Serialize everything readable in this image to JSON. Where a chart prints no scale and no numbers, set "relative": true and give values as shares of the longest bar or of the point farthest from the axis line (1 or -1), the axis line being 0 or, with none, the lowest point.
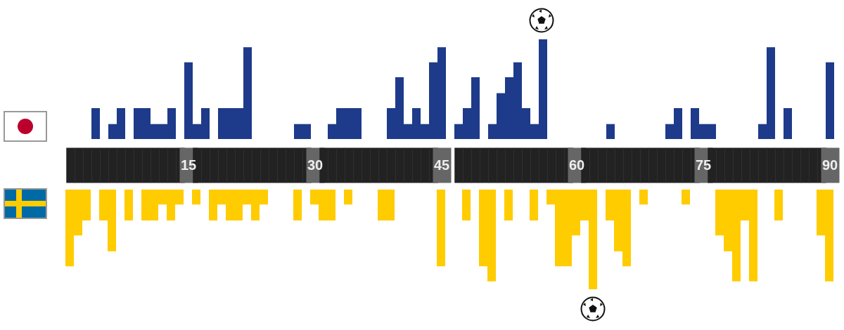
{
  "chart_data": [
    {
      "type": "bar",
      "relative": true,
      "color": "#1e3a8a",
      "categories": [
        null,
        null,
        null,
        null,
        null,
        null,
        null,
        null,
        null,
        null,
        null,
        null,
        null,
        null,
        "15",
        null,
        null,
        null,
        null,
        null,
        null,
        null,
        null,
        null,
        null,
        null,
        null,
        null,
        null,
        "30",
        null,
        null,
        null,
        null,
        null,
        null,
        null,
        null,
        null,
        null,
        null,
        null,
        null,
        null,
        "45",
        null,
        null,
        null,
        null,
        null,
        null,
        null,
        null,
        null,
        null,
        null,
        null,
        null,
        null,
        null,
        "60",
        null,
        null,
        null,
        null,
        null,
        null,
        null,
        null,
        null,
        null,
        null,
        null,
        null,
        null,
        "75",
        null,
        null,
        null,
        null,
        null,
        null,
        null,
        null,
        null,
        null,
        null,
        null,
        null,
        null,
        "90"
      ],
      "values": [
        0,
        0,
        0,
        0.31,
        0,
        0.15,
        0.31,
        0,
        0.31,
        0.31,
        0.15,
        0.15,
        0.31,
        0,
        0.77,
        0.15,
        0.31,
        0,
        0.31,
        0.31,
        0.31,
        0.92,
        0,
        0,
        0,
        0,
        0,
        0.15,
        0.15,
        0,
        0,
        0.15,
        0.31,
        0.31,
        0.31,
        0,
        0,
        0,
        0.31,
        0.62,
        0.15,
        0.31,
        0.15,
        0.77,
        0.92,
        null,
        0.15,
        0.31,
        0.62,
        0,
        0.15,
        0.46,
        0.62,
        0.77,
        0.31,
        0.15,
        1,
        0,
        0,
        0,
        0,
        0,
        0,
        0,
        0.15,
        0,
        0,
        0,
        0,
        0,
        0,
        0.15,
        0.31,
        0,
        0.31,
        0.15,
        0.15,
        0,
        0,
        0,
        0,
        0,
        0.15,
        0.92,
        0,
        0.31,
        0,
        0,
        0,
        0,
        0.77
      ]
    },
    {
      "type": "bar",
      "relative": true,
      "color": "#ffcc00",
      "tick_labels": false,
      "categories": [
        null,
        null,
        null,
        null,
        null,
        null,
        null,
        null,
        null,
        null,
        null,
        null,
        null,
        null,
        "15",
        null,
        null,
        null,
        null,
        null,
        null,
        null,
        null,
        null,
        null,
        null,
        null,
        null,
        null,
        "30",
        null,
        null,
        null,
        null,
        null,
        null,
        null,
        null,
        null,
        null,
        null,
        null,
        null,
        null,
        "45",
        null,
        null,
        null,
        null,
        null,
        null,
        null,
        null,
        null,
        null,
        null,
        null,
        null,
        null,
        null,
        "60",
        null,
        null,
        null,
        null,
        null,
        null,
        null,
        null,
        null,
        null,
        null,
        null,
        null,
        null,
        "75",
        null,
        null,
        null,
        null,
        null,
        null,
        null,
        null,
        null,
        null,
        null,
        null,
        null,
        null,
        "90"
      ],
      "values": [
        -0.77,
        -0.46,
        -0.31,
        0,
        -0.31,
        -0.62,
        0,
        -0.31,
        0,
        -0.31,
        -0.31,
        -0.15,
        -0.31,
        -0.15,
        0,
        -0.15,
        0,
        -0.31,
        -0.15,
        -0.31,
        -0.31,
        -0.15,
        -0.31,
        -0.15,
        0,
        0,
        0,
        -0.31,
        0,
        -0.15,
        -0.31,
        -0.31,
        0,
        -0.15,
        0,
        0,
        0,
        -0.31,
        -0.31,
        0,
        0,
        0,
        0,
        0,
        -0.77,
        null,
        0,
        -0.31,
        0,
        -0.77,
        -0.92,
        0,
        -0.31,
        0,
        0,
        -0.31,
        0,
        -0.15,
        -0.77,
        -0.77,
        -0.46,
        -0.31,
        -1,
        0,
        -0.31,
        -0.62,
        -0.77,
        0,
        -0.15,
        0,
        0,
        0,
        0,
        -0.15,
        0,
        0,
        0,
        -0.46,
        -0.62,
        -0.92,
        -0.31,
        -0.92,
        0,
        0,
        -0.31,
        0,
        0,
        0,
        0,
        -0.46,
        -0.92
      ]
    }
  ]
}
